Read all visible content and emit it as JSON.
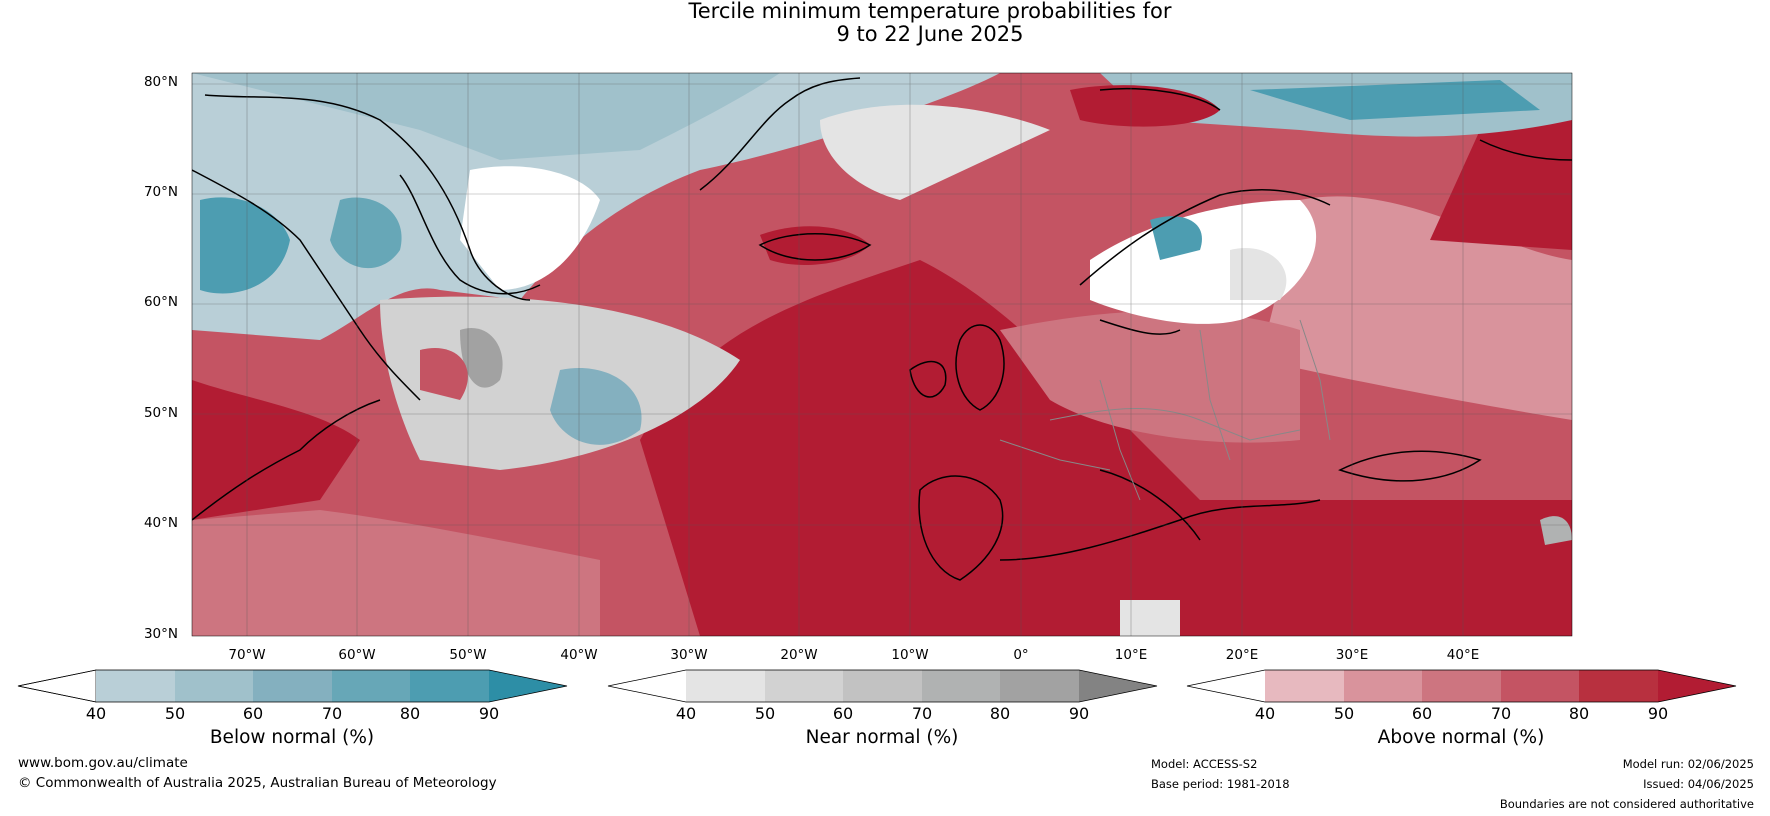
{
  "title_line1": "Tercile minimum temperature probabilities for",
  "title_line2": "9 to 22 June 2025",
  "map": {
    "lat_labels": [
      "80°N",
      "70°N",
      "60°N",
      "50°N",
      "40°N",
      "30°N"
    ],
    "lon_labels": [
      "70°W",
      "60°W",
      "50°W",
      "40°W",
      "30°W",
      "20°W",
      "10°W",
      "0°",
      "10°E",
      "20°E",
      "30°E",
      "40°E"
    ]
  },
  "colorbars": [
    {
      "name": "below",
      "title": "Below normal (%)",
      "ticks": [
        "40",
        "50",
        "60",
        "70",
        "80",
        "90"
      ],
      "colors": [
        "#ffffff",
        "#b9cfd7",
        "#a0c1cb",
        "#84b0bf",
        "#67a7b7",
        "#4d9db1",
        "#2d8ea6"
      ]
    },
    {
      "name": "near",
      "title": "Near normal (%)",
      "ticks": [
        "40",
        "50",
        "60",
        "70",
        "80",
        "90"
      ],
      "colors": [
        "#ffffff",
        "#e4e4e4",
        "#d2d2d2",
        "#c2c2c2",
        "#b0b2b2",
        "#a2a2a2",
        "#838383"
      ]
    },
    {
      "name": "above",
      "title": "Above normal (%)",
      "ticks": [
        "40",
        "50",
        "60",
        "70",
        "80",
        "90"
      ],
      "colors": [
        "#ffffff",
        "#e7b9bf",
        "#d9939c",
        "#cd7580",
        "#c45463",
        "#b8303f",
        "#b21c33"
      ]
    }
  ],
  "footer": {
    "website": "www.bom.gov.au/climate",
    "copyright": "© Commonwealth of Australia 2025, Australian Bureau of Meteorology",
    "model": "Model: ACCESS-S2",
    "base_period": "Base period: 1981-2018",
    "model_run": "Model run: 02/06/2025",
    "issued": "Issued: 04/06/2025",
    "disclaimer": "Boundaries are not considered authoritative"
  }
}
